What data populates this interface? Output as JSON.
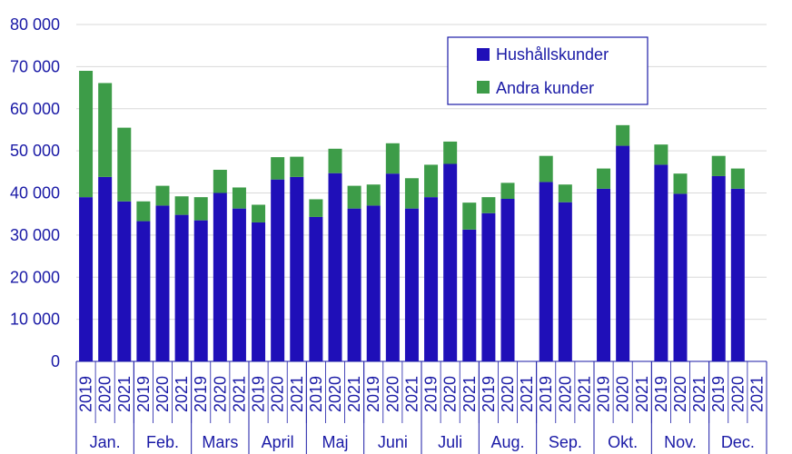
{
  "chart_data": {
    "type": "bar",
    "stacked": true,
    "ylim": [
      0,
      80000
    ],
    "yticks": [
      0,
      10000,
      20000,
      30000,
      40000,
      50000,
      60000,
      70000,
      80000
    ],
    "ytick_labels": [
      "0",
      "10 000",
      "20 000",
      "30 000",
      "40 000",
      "50 000",
      "60 000",
      "70 000",
      "80 000"
    ],
    "grid": true,
    "legend_position": "top-right",
    "months": [
      "Jan.",
      "Feb.",
      "Mars",
      "April",
      "Maj",
      "Juni",
      "Juli",
      "Aug.",
      "Sep.",
      "Okt.",
      "Nov.",
      "Dec."
    ],
    "years": [
      "2019",
      "2020",
      "2021"
    ],
    "series": [
      {
        "name": "Hushållskunder",
        "color": "#1f0fb8",
        "values": [
          39000,
          43800,
          38000,
          33300,
          37000,
          34800,
          33500,
          40000,
          36300,
          33000,
          43200,
          43800,
          34300,
          44700,
          36300,
          37000,
          44600,
          36300,
          39000,
          46900,
          31300,
          35200,
          38600,
          null,
          42600,
          37800,
          null,
          41000,
          51200,
          null,
          46700,
          39800,
          null,
          44000,
          41000,
          null
        ]
      },
      {
        "name": "Andra kunder",
        "color": "#3d9c48",
        "values": [
          30000,
          22300,
          17500,
          4700,
          4700,
          4400,
          5500,
          5500,
          5000,
          4200,
          5300,
          4800,
          4200,
          5800,
          5400,
          5000,
          7200,
          7200,
          7700,
          5300,
          6400,
          3800,
          3800,
          null,
          6200,
          4200,
          null,
          4800,
          4900,
          null,
          4800,
          4800,
          null,
          4800,
          4800,
          null
        ]
      }
    ]
  }
}
